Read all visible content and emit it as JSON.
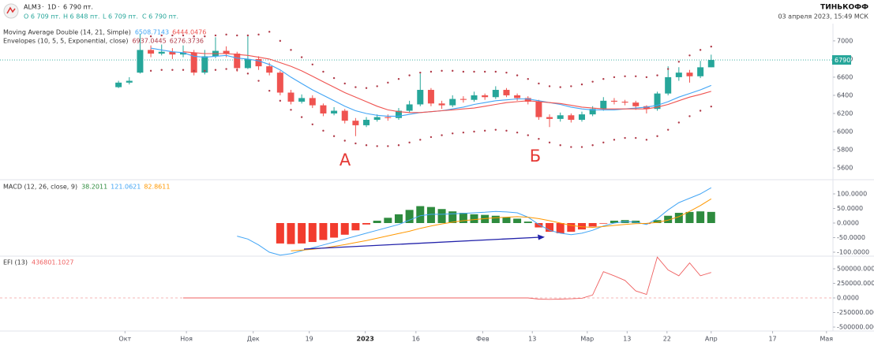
{
  "header": {
    "symbol": "ALM3",
    "interval": "1D",
    "price": "6 790 пт.",
    "ohlc": [
      "O 6 709 пт.",
      "H 6 848 пт.",
      "L 6 709 пт.",
      "C 6 790 пт."
    ],
    "brand": "ТИНЬКОФФ",
    "datetime": "03 апреля 2023, 15:49 МСК"
  },
  "annotations": [
    "А",
    "Б"
  ],
  "chart_data": [
    {
      "type": "candlestick",
      "indicators": [
        {
          "label": "Moving Average Double (14, 21, Simple)",
          "values": [
            6508.7143,
            6444.0476
          ],
          "colors": [
            "#42a5f5",
            "#ef5350"
          ]
        },
        {
          "label": "Envelopes (10, 5, 5, Exponential, close)",
          "values": [
            6937.0445,
            6276.3736
          ],
          "colors": [
            "#b03a48",
            "#b03a48"
          ]
        }
      ],
      "xlim": [
        -11,
        66.3
      ],
      "xticks": [
        {
          "value": 0.6,
          "label": "Окт"
        },
        {
          "value": 6.3,
          "label": "Ноя"
        },
        {
          "value": 12.5,
          "label": "Дек"
        },
        {
          "value": 17.7,
          "label": "19"
        },
        {
          "value": 22.9,
          "label": "2023"
        },
        {
          "value": 27.6,
          "label": "16"
        },
        {
          "value": 33.8,
          "label": "Фев"
        },
        {
          "value": 38.4,
          "label": "13"
        },
        {
          "value": 43.5,
          "label": "Мар"
        },
        {
          "value": 47.2,
          "label": "13"
        },
        {
          "value": 50.9,
          "label": "22"
        },
        {
          "value": 55.0,
          "label": "Апр"
        },
        {
          "value": 60.7,
          "label": "17"
        },
        {
          "value": 65.7,
          "label": "Мая"
        }
      ],
      "ylim": [
        5470,
        7190
      ],
      "yticks": [
        5600,
        5800,
        6000,
        6200,
        6400,
        6600,
        6800,
        7000
      ],
      "up_color": "#26a69a",
      "down_color": "#ef5350",
      "price_tag": 6790,
      "price_tag_color": "#26a69a",
      "x": [
        0,
        1,
        2,
        3,
        4,
        5,
        6,
        7,
        8,
        9,
        10,
        11,
        12,
        13,
        14,
        15,
        16,
        17,
        18,
        19,
        20,
        21,
        22,
        23,
        24,
        25,
        26,
        27,
        28,
        29,
        30,
        31,
        32,
        33,
        34,
        35,
        36,
        37,
        38,
        39,
        40,
        41,
        42,
        43,
        44,
        45,
        46,
        47,
        48,
        49,
        50,
        51,
        52,
        53,
        54,
        55
      ],
      "open": [
        6490,
        6540,
        6650,
        6900,
        6860,
        6880,
        6850,
        6870,
        6650,
        6830,
        6890,
        6860,
        6700,
        6800,
        6720,
        6650,
        6430,
        6330,
        6370,
        6290,
        6200,
        6230,
        6120,
        6070,
        6130,
        6160,
        6150,
        6230,
        6300,
        6460,
        6310,
        6290,
        6360,
        6350,
        6400,
        6380,
        6460,
        6400,
        6370,
        6330,
        6160,
        6140,
        6180,
        6130,
        6190,
        6250,
        6340,
        6330,
        6320,
        6280,
        6250,
        6420,
        6600,
        6650,
        6610,
        6709
      ],
      "high": [
        6560,
        6600,
        7080,
        6950,
        6960,
        6920,
        6950,
        6900,
        6900,
        7040,
        6940,
        6880,
        7050,
        6830,
        6760,
        6670,
        6460,
        6410,
        6400,
        6310,
        6270,
        6250,
        6150,
        6160,
        6190,
        6190,
        6260,
        6340,
        6640,
        6480,
        6340,
        6400,
        6390,
        6440,
        6420,
        6500,
        6480,
        6420,
        6390,
        6350,
        6190,
        6210,
        6200,
        6220,
        6280,
        6380,
        6370,
        6350,
        6340,
        6290,
        6440,
        6720,
        6710,
        6680,
        6780,
        6848
      ],
      "low": [
        6480,
        6520,
        6640,
        6820,
        6840,
        6800,
        6820,
        6620,
        6630,
        6810,
        6820,
        6660,
        6690,
        6680,
        6620,
        6400,
        6300,
        6310,
        6260,
        6170,
        6180,
        6090,
        5950,
        6050,
        6110,
        6120,
        6130,
        6210,
        6280,
        6280,
        6250,
        6270,
        6320,
        6330,
        6350,
        6360,
        6380,
        6340,
        6300,
        6130,
        6050,
        6110,
        6100,
        6110,
        6170,
        6230,
        6300,
        6290,
        6240,
        6200,
        6230,
        6400,
        6560,
        6540,
        6590,
        6709
      ],
      "close": [
        6540,
        6560,
        6900,
        6860,
        6880,
        6850,
        6870,
        6650,
        6830,
        6890,
        6860,
        6700,
        6800,
        6720,
        6650,
        6430,
        6330,
        6370,
        6290,
        6200,
        6230,
        6120,
        6070,
        6130,
        6160,
        6150,
        6230,
        6300,
        6460,
        6310,
        6290,
        6360,
        6350,
        6400,
        6380,
        6460,
        6400,
        6370,
        6330,
        6160,
        6140,
        6180,
        6130,
        6190,
        6250,
        6340,
        6330,
        6320,
        6280,
        6250,
        6420,
        6600,
        6650,
        6610,
        6709,
        6790
      ],
      "series": [
        {
          "color": "#42a5f5",
          "style": "line",
          "values": [
            null,
            null,
            null,
            6920,
            6900,
            6880,
            6870,
            6830,
            6820,
            6830,
            6840,
            6810,
            6800,
            6780,
            6740,
            6680,
            6600,
            6530,
            6460,
            6400,
            6340,
            6280,
            6230,
            6200,
            6180,
            6170,
            6170,
            6190,
            6210,
            6220,
            6230,
            6250,
            6270,
            6300,
            6320,
            6340,
            6350,
            6360,
            6360,
            6340,
            6320,
            6300,
            6270,
            6250,
            6240,
            6240,
            6240,
            6250,
            6260,
            6270,
            6290,
            6330,
            6380,
            6420,
            6460,
            6508.7143
          ]
        },
        {
          "color": "#ef5350",
          "style": "line",
          "values": [
            null,
            null,
            null,
            null,
            null,
            null,
            6880,
            6870,
            6860,
            6860,
            6860,
            6850,
            6840,
            6820,
            6800,
            6760,
            6720,
            6670,
            6610,
            6550,
            6490,
            6430,
            6380,
            6330,
            6280,
            6240,
            6220,
            6210,
            6210,
            6220,
            6230,
            6240,
            6250,
            6260,
            6280,
            6300,
            6320,
            6330,
            6340,
            6330,
            6320,
            6310,
            6290,
            6270,
            6260,
            6250,
            6250,
            6250,
            6250,
            6250,
            6270,
            6300,
            6340,
            6380,
            6410,
            6444.0476
          ]
        },
        {
          "color": "#b03a48",
          "style": "dots",
          "values": [
            null,
            null,
            null,
            7050,
            7060,
            7060,
            7060,
            7050,
            7050,
            7060,
            7070,
            7060,
            7060,
            7070,
            7100,
            7000,
            6900,
            6820,
            6740,
            6660,
            6590,
            6530,
            6490,
            6480,
            6500,
            6540,
            6580,
            6620,
            6650,
            6660,
            6670,
            6670,
            6660,
            6660,
            6660,
            6660,
            6650,
            6620,
            6580,
            6530,
            6500,
            6490,
            6500,
            6520,
            6550,
            6580,
            6600,
            6610,
            6610,
            6600,
            6620,
            6690,
            6770,
            6840,
            6900,
            6937.0445
          ]
        },
        {
          "color": "#b03a48",
          "style": "dots",
          "values": [
            null,
            null,
            null,
            6670,
            6680,
            6680,
            6680,
            6670,
            6670,
            6680,
            6690,
            6680,
            6640,
            6560,
            6450,
            6340,
            6240,
            6160,
            6080,
            6010,
            5950,
            5900,
            5870,
            5850,
            5840,
            5840,
            5850,
            5880,
            5910,
            5940,
            5960,
            5980,
            5990,
            6000,
            6010,
            6020,
            6010,
            5990,
            5960,
            5920,
            5880,
            5850,
            5830,
            5830,
            5850,
            5880,
            5910,
            5930,
            5930,
            5910,
            5950,
            6020,
            6100,
            6170,
            6230,
            6276.3736
          ]
        }
      ]
    },
    {
      "type": "macd",
      "legend": "MACD (12, 26, close, 9)",
      "legend_values": [
        38.2011,
        121.0621,
        82.8611
      ],
      "ylim": [
        -113.5,
        148.6
      ],
      "yticks": [
        {
          "value": 100,
          "label": "100.0000"
        },
        {
          "value": 50,
          "label": "50.0000"
        },
        {
          "value": 0,
          "label": "0.0000"
        },
        {
          "value": -50,
          "label": "-50.0000"
        },
        {
          "value": -100,
          "label": "-100.0000"
        }
      ],
      "histogram": {
        "pos_color": "#2e8b3e",
        "neg_color": "#f23c2e",
        "values": [
          null,
          null,
          null,
          null,
          null,
          null,
          null,
          null,
          null,
          null,
          null,
          null,
          null,
          null,
          null,
          -70,
          -72,
          -70,
          -65,
          -58,
          -50,
          -40,
          -25,
          -5,
          8,
          18,
          30,
          45,
          58,
          55,
          48,
          40,
          35,
          30,
          28,
          25,
          20,
          15,
          5,
          -15,
          -30,
          -35,
          -30,
          -22,
          -12,
          -2,
          8,
          10,
          8,
          -3,
          10,
          25,
          35,
          38,
          40,
          38.2011
        ]
      },
      "series": [
        {
          "color": "#42a5f5",
          "values": [
            null,
            null,
            null,
            null,
            null,
            null,
            null,
            null,
            null,
            null,
            null,
            -45,
            -55,
            -75,
            -100,
            -110,
            -105,
            -95,
            -85,
            -75,
            -65,
            -55,
            -45,
            -35,
            -25,
            -15,
            -5,
            10,
            25,
            30,
            30,
            32,
            33,
            35,
            37,
            40,
            38,
            35,
            20,
            -5,
            -25,
            -35,
            -40,
            -35,
            -25,
            -10,
            0,
            5,
            3,
            -5,
            15,
            45,
            70,
            85,
            100,
            121.0621
          ]
        },
        {
          "color": "#ff9800",
          "values": [
            null,
            null,
            null,
            null,
            null,
            null,
            null,
            null,
            null,
            null,
            null,
            null,
            null,
            null,
            null,
            null,
            -95,
            -93,
            -90,
            -86,
            -80,
            -74,
            -67,
            -60,
            -52,
            -44,
            -36,
            -28,
            -18,
            -10,
            -3,
            3,
            8,
            12,
            15,
            18,
            20,
            22,
            20,
            15,
            8,
            0,
            -8,
            -13,
            -15,
            -12,
            -8,
            -5,
            -2,
            -1,
            2,
            10,
            22,
            40,
            60,
            82.8611
          ]
        }
      ]
    },
    {
      "type": "line",
      "legend": "EFI (13)",
      "legend_value": 436801.1027,
      "color": "#ef6060",
      "ylim": [
        -567600,
        716200
      ],
      "yticks": [
        {
          "value": 500000,
          "label": "500000.0000"
        },
        {
          "value": 250000,
          "label": "250000.0000"
        },
        {
          "value": 0,
          "label": "0.0000"
        },
        {
          "value": -250000,
          "label": "-250000.0000"
        },
        {
          "value": -500000,
          "label": "-500000.0000"
        }
      ],
      "values": [
        null,
        null,
        null,
        null,
        null,
        null,
        0,
        0,
        0,
        0,
        0,
        0,
        0,
        0,
        0,
        0,
        0,
        0,
        0,
        0,
        0,
        0,
        0,
        0,
        0,
        0,
        0,
        0,
        0,
        0,
        0,
        0,
        0,
        0,
        0,
        0,
        0,
        0,
        0,
        -20000,
        -25000,
        -20000,
        -15000,
        -5000,
        50000,
        450000,
        380000,
        300000,
        120000,
        60000,
        700000,
        480000,
        380000,
        600000,
        380000,
        436801.1027
      ]
    }
  ]
}
